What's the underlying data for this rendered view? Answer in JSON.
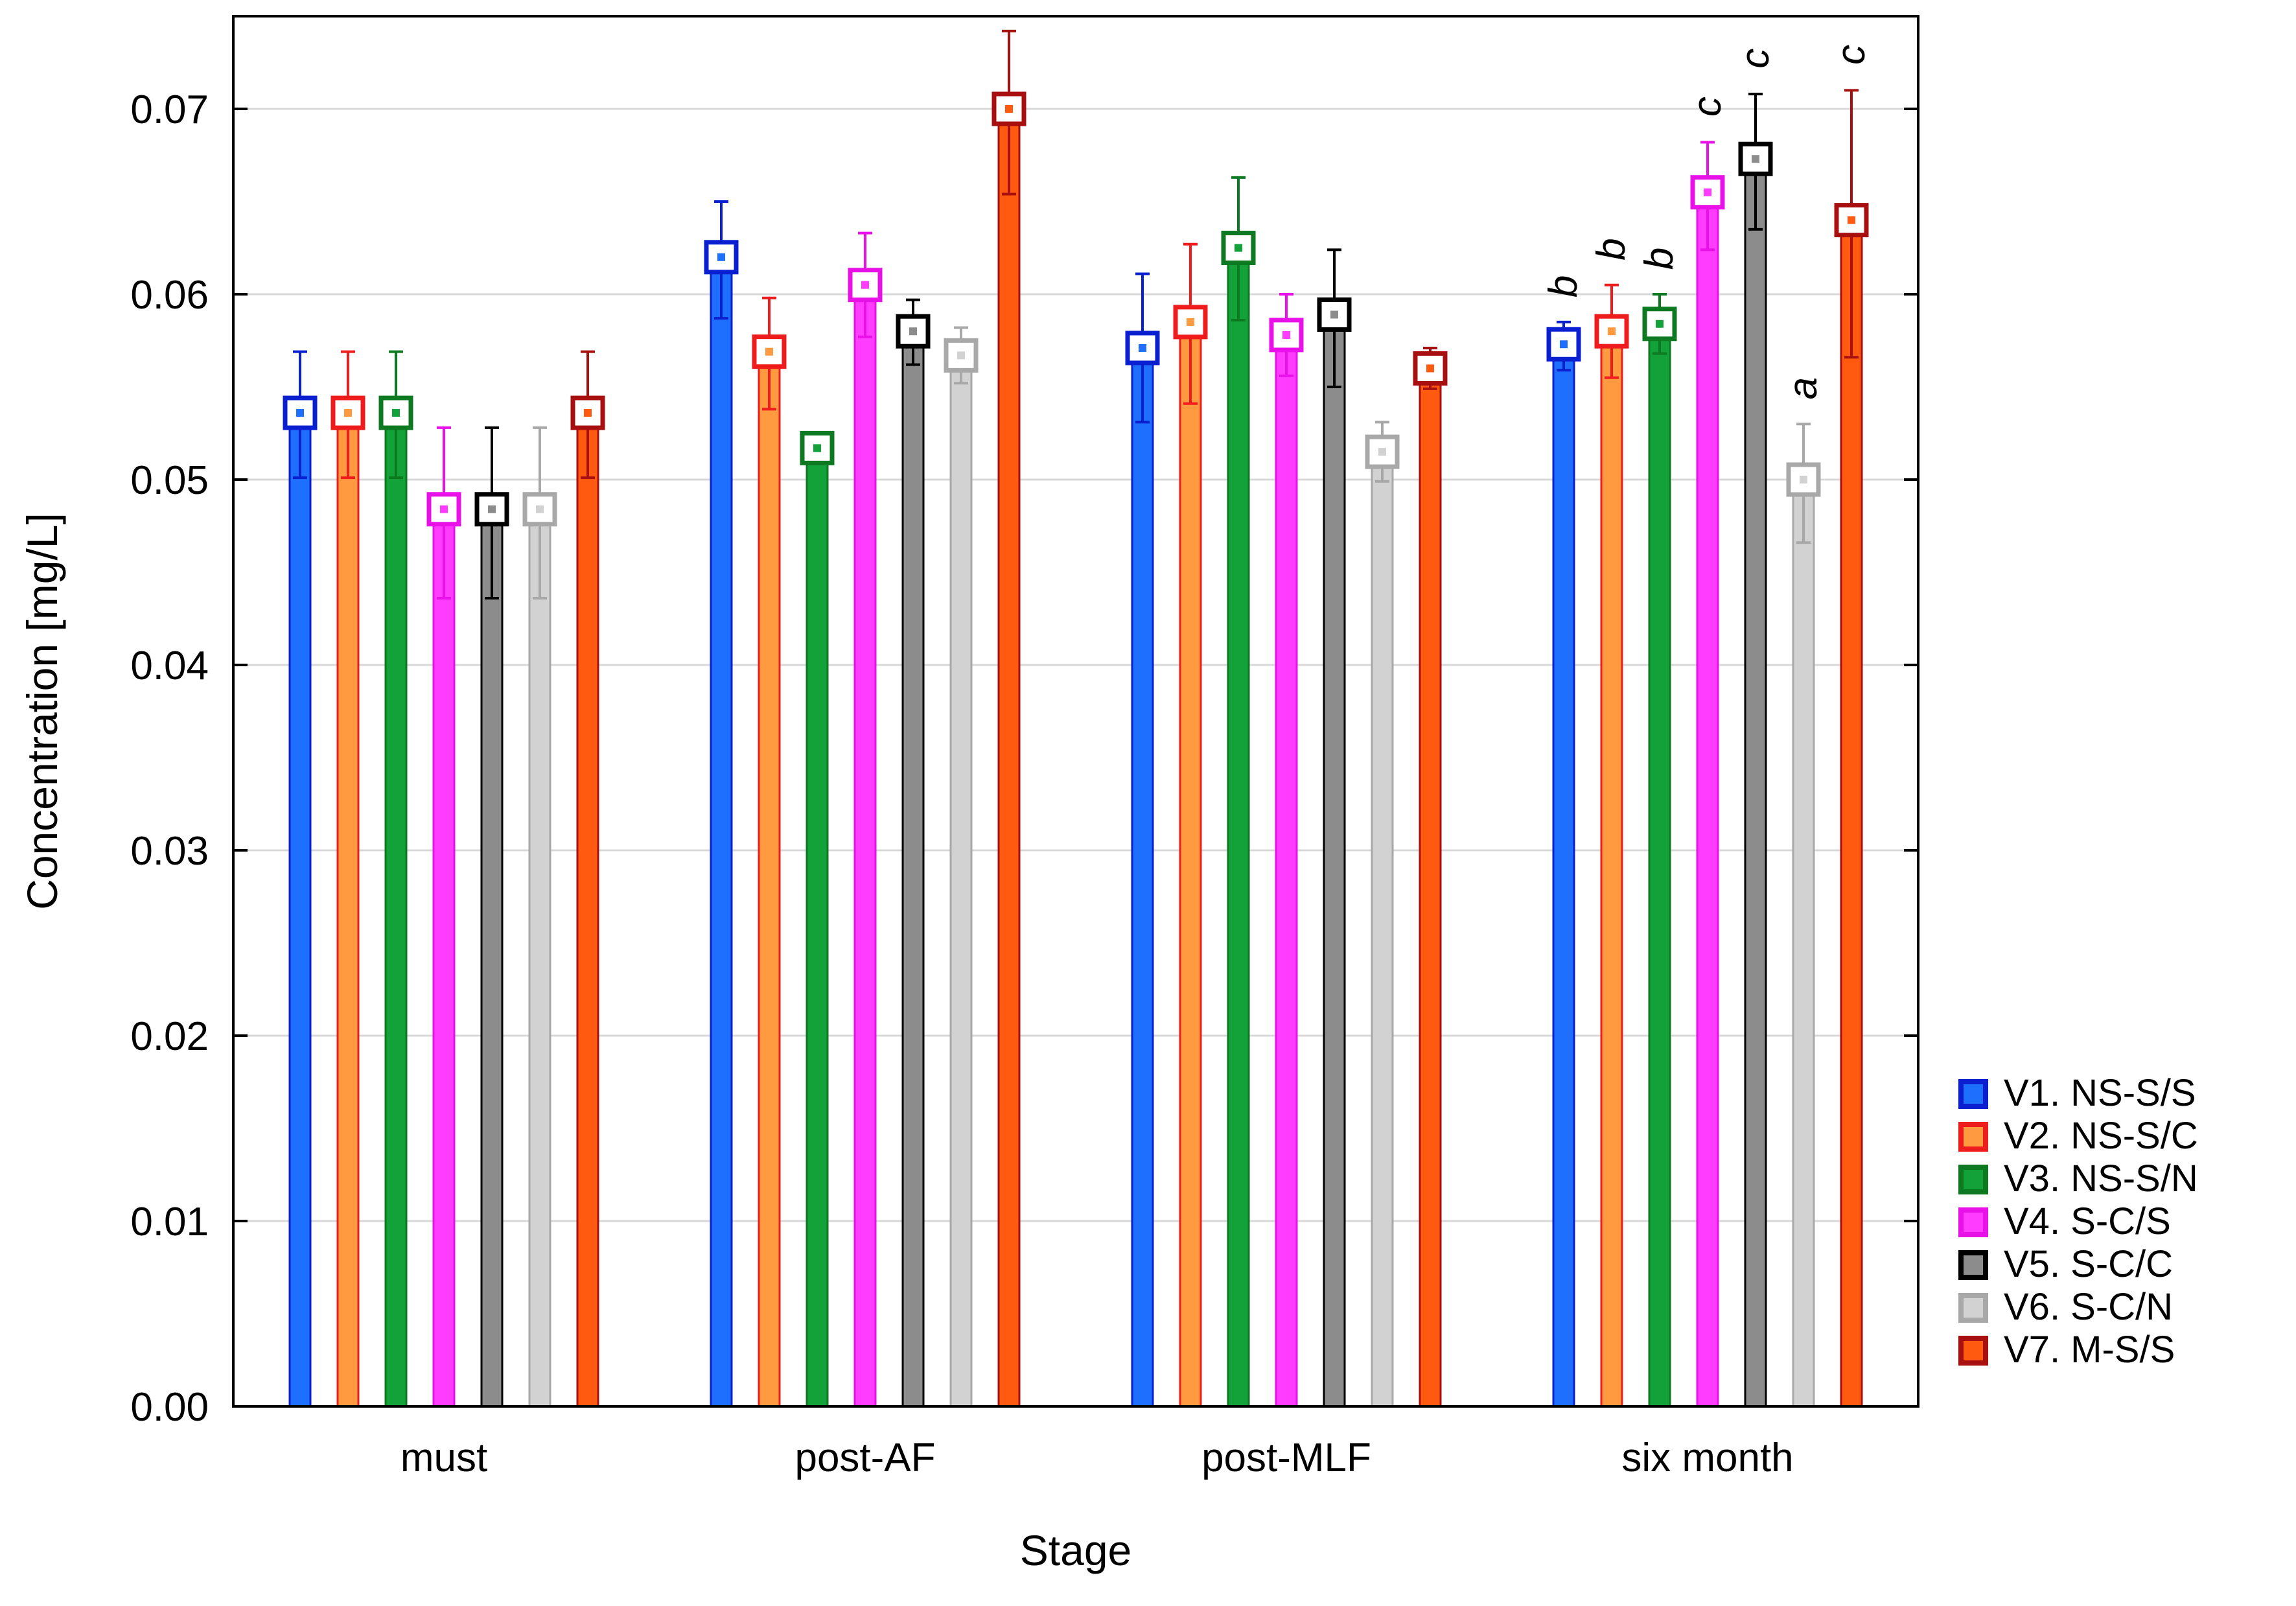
{
  "chart_data": {
    "type": "bar",
    "title": "",
    "xlabel": "Stage",
    "ylabel": "Concentration [mg/L]",
    "ylim": [
      0,
      0.075
    ],
    "yticks": [
      "0.00",
      "0.01",
      "0.02",
      "0.03",
      "0.04",
      "0.05",
      "0.06",
      "0.07"
    ],
    "ytick_values": [
      0,
      0.01,
      0.02,
      0.03,
      0.04,
      0.05,
      0.06,
      0.07
    ],
    "grid": true,
    "legend_position": "bottom-right",
    "categories": [
      "must",
      "post-AF",
      "post-MLF",
      "six month"
    ],
    "series": [
      {
        "name": "V1. NS-S/S",
        "fill": "#1f6fff",
        "edge": "#0a1fd0",
        "values": [
          0.0536,
          0.062,
          0.0571,
          0.0573
        ],
        "err_low": [
          0.0501,
          0.0587,
          0.0531,
          0.0559
        ],
        "err_high": [
          0.0569,
          0.065,
          0.0611,
          0.0585
        ],
        "sig": [
          "",
          "",
          "",
          "b"
        ]
      },
      {
        "name": "V2. NS-S/C",
        "fill": "#ff9a40",
        "edge": "#ee1c1c",
        "values": [
          0.0536,
          0.0569,
          0.0585,
          0.058
        ],
        "err_low": [
          0.0501,
          0.0538,
          0.0541,
          0.0555
        ],
        "err_high": [
          0.0569,
          0.0598,
          0.0627,
          0.0605
        ],
        "sig": [
          "",
          "",
          "",
          "b"
        ]
      },
      {
        "name": "V3. NS-S/N",
        "fill": "#13a13a",
        "edge": "#0d7a22",
        "values": [
          0.0536,
          0.0517,
          0.0625,
          0.0584
        ],
        "err_low": [
          0.0501,
          0.0513,
          0.0586,
          0.0568
        ],
        "err_high": [
          0.0569,
          0.0521,
          0.0663,
          0.06
        ],
        "sig": [
          "",
          "",
          "",
          "b"
        ]
      },
      {
        "name": "V4. S-C/S",
        "fill": "#ff3cff",
        "edge": "#e811e8",
        "values": [
          0.0484,
          0.0605,
          0.0578,
          0.0655
        ],
        "err_low": [
          0.0436,
          0.0577,
          0.0556,
          0.0624
        ],
        "err_high": [
          0.0528,
          0.0633,
          0.06,
          0.0682
        ],
        "sig": [
          "",
          "",
          "",
          "c"
        ]
      },
      {
        "name": "V5. S-C/C",
        "fill": "#8c8c8c",
        "edge": "#000000",
        "values": [
          0.0484,
          0.058,
          0.0589,
          0.0673
        ],
        "err_low": [
          0.0436,
          0.0562,
          0.055,
          0.0635
        ],
        "err_high": [
          0.0528,
          0.0597,
          0.0624,
          0.0708
        ],
        "sig": [
          "",
          "",
          "",
          "c"
        ]
      },
      {
        "name": "V6. S-C/N",
        "fill": "#d2d2d2",
        "edge": "#a8a8a8",
        "values": [
          0.0484,
          0.0567,
          0.0515,
          0.05
        ],
        "err_low": [
          0.0436,
          0.0552,
          0.0499,
          0.0466
        ],
        "err_high": [
          0.0528,
          0.0582,
          0.0531,
          0.053
        ],
        "sig": [
          "",
          "",
          "",
          "a"
        ]
      },
      {
        "name": "V7. M-S/S",
        "fill": "#ff5a10",
        "edge": "#a81010",
        "values": [
          0.0536,
          0.07,
          0.056,
          0.064
        ],
        "err_low": [
          0.0501,
          0.0654,
          0.0549,
          0.0566
        ],
        "err_high": [
          0.0569,
          0.0742,
          0.0571,
          0.071
        ],
        "sig": [
          "",
          "",
          "",
          "c"
        ]
      }
    ]
  }
}
